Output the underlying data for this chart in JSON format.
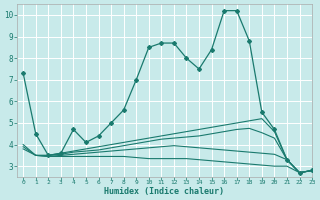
{
  "xlabel": "Humidex (Indice chaleur)",
  "bg_color": "#c8eaea",
  "grid_color": "#ffffff",
  "line_color": "#1a7a6e",
  "xlim": [
    -0.5,
    23
  ],
  "ylim": [
    2.5,
    10.5
  ],
  "xticks": [
    0,
    1,
    2,
    3,
    4,
    5,
    6,
    7,
    8,
    9,
    10,
    11,
    12,
    13,
    14,
    15,
    16,
    17,
    18,
    19,
    20,
    21,
    22,
    23
  ],
  "yticks": [
    3,
    4,
    5,
    6,
    7,
    8,
    9,
    10
  ],
  "lines": [
    {
      "x": [
        0,
        1,
        2,
        3,
        4,
        5,
        6,
        7,
        8,
        9,
        10,
        11,
        12,
        13,
        14,
        15,
        16,
        17,
        18,
        19,
        20,
        21,
        22,
        23
      ],
      "y": [
        7.3,
        4.5,
        3.5,
        3.6,
        4.7,
        4.1,
        4.4,
        5.0,
        5.6,
        7.0,
        8.5,
        8.7,
        8.7,
        8.0,
        7.5,
        8.4,
        10.2,
        10.2,
        8.8,
        5.5,
        4.7,
        3.3,
        2.7,
        2.8
      ],
      "marker": true
    },
    {
      "x": [
        0,
        1,
        2,
        3,
        4,
        5,
        6,
        7,
        8,
        9,
        10,
        11,
        12,
        13,
        14,
        15,
        16,
        17,
        18,
        19,
        20,
        21,
        22,
        23
      ],
      "y": [
        3.8,
        3.5,
        3.5,
        3.6,
        3.7,
        3.8,
        3.9,
        4.0,
        4.1,
        4.2,
        4.3,
        4.4,
        4.5,
        4.6,
        4.7,
        4.8,
        4.9,
        5.0,
        5.1,
        5.2,
        4.6,
        3.3,
        2.7,
        2.8
      ],
      "marker": false
    },
    {
      "x": [
        0,
        1,
        2,
        3,
        4,
        5,
        6,
        7,
        8,
        9,
        10,
        11,
        12,
        13,
        14,
        15,
        16,
        17,
        18,
        19,
        20,
        21,
        22,
        23
      ],
      "y": [
        3.9,
        3.5,
        3.5,
        3.55,
        3.65,
        3.7,
        3.75,
        3.85,
        3.95,
        4.05,
        4.15,
        4.25,
        4.3,
        4.35,
        4.4,
        4.5,
        4.6,
        4.7,
        4.75,
        4.55,
        4.3,
        3.3,
        2.7,
        2.8
      ],
      "marker": false
    },
    {
      "x": [
        0,
        1,
        2,
        3,
        4,
        5,
        6,
        7,
        8,
        9,
        10,
        11,
        12,
        13,
        14,
        15,
        16,
        17,
        18,
        19,
        20,
        21,
        22,
        23
      ],
      "y": [
        4.0,
        3.5,
        3.45,
        3.5,
        3.55,
        3.6,
        3.65,
        3.7,
        3.75,
        3.8,
        3.85,
        3.9,
        3.95,
        3.9,
        3.85,
        3.8,
        3.75,
        3.7,
        3.65,
        3.6,
        3.55,
        3.3,
        2.7,
        2.8
      ],
      "marker": false
    },
    {
      "x": [
        1,
        2,
        3,
        4,
        5,
        6,
        7,
        8,
        9,
        10,
        11,
        12,
        13,
        14,
        15,
        16,
        17,
        18,
        19,
        20,
        21,
        22,
        23
      ],
      "y": [
        3.5,
        3.45,
        3.45,
        3.45,
        3.45,
        3.45,
        3.45,
        3.45,
        3.4,
        3.35,
        3.35,
        3.35,
        3.35,
        3.3,
        3.25,
        3.2,
        3.15,
        3.1,
        3.05,
        3.0,
        3.0,
        2.7,
        2.8
      ],
      "marker": false
    }
  ]
}
